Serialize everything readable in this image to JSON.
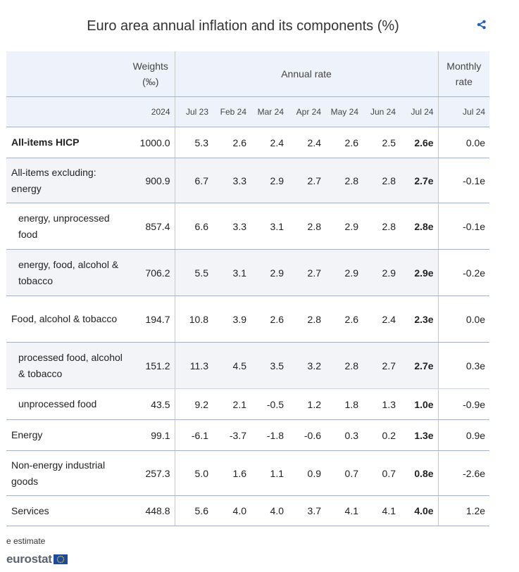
{
  "title": "Euro area annual inflation and its components (%)",
  "header": {
    "weights": "Weights (‰)",
    "annual_rate": "Annual rate",
    "monthly_rate": "Monthly rate",
    "columns": [
      "2024",
      "Jul 23",
      "Feb 24",
      "Mar 24",
      "Apr 24",
      "May 24",
      "Jun 24",
      "Jul 24",
      "Jul 24"
    ]
  },
  "rows": [
    {
      "label": "All-items HICP",
      "values": [
        "1000.0",
        "5.3",
        "2.6",
        "2.4",
        "2.4",
        "2.6",
        "2.5",
        "2.6e",
        "0.0e"
      ]
    },
    {
      "label": "All-items excluding: energy",
      "values": [
        "900.9",
        "6.7",
        "3.3",
        "2.9",
        "2.7",
        "2.8",
        "2.8",
        "2.7e",
        "-0.1e"
      ]
    },
    {
      "label": "energy, unprocessed food",
      "values": [
        "857.4",
        "6.6",
        "3.3",
        "3.1",
        "2.8",
        "2.9",
        "2.8",
        "2.8e",
        "-0.1e"
      ]
    },
    {
      "label": "energy, food, alcohol & tobacco",
      "values": [
        "706.2",
        "5.5",
        "3.1",
        "2.9",
        "2.7",
        "2.9",
        "2.9",
        "2.9e",
        "-0.2e"
      ]
    },
    {
      "label": "Food, alcohol & tobacco",
      "values": [
        "194.7",
        "10.8",
        "3.9",
        "2.6",
        "2.8",
        "2.6",
        "2.4",
        "2.3e",
        "0.0e"
      ]
    },
    {
      "label": "processed food, alcohol & tobacco",
      "values": [
        "151.2",
        "11.3",
        "4.5",
        "3.5",
        "3.2",
        "2.8",
        "2.7",
        "2.7e",
        "0.3e"
      ]
    },
    {
      "label": "unprocessed food",
      "values": [
        "43.5",
        "9.2",
        "2.1",
        "-0.5",
        "1.2",
        "1.8",
        "1.3",
        "1.0e",
        "-0.9e"
      ]
    },
    {
      "label": "Energy",
      "values": [
        "99.1",
        "-6.1",
        "-3.7",
        "-1.8",
        "-0.6",
        "0.3",
        "0.2",
        "1.3e",
        "0.9e"
      ]
    },
    {
      "label": "Non-energy industrial goods",
      "values": [
        "257.3",
        "5.0",
        "1.6",
        "1.1",
        "0.9",
        "0.7",
        "0.7",
        "0.8e",
        "-2.6e"
      ]
    },
    {
      "label": "Services",
      "values": [
        "448.8",
        "5.6",
        "4.0",
        "4.0",
        "3.7",
        "4.1",
        "4.1",
        "4.0e",
        "1.2e"
      ]
    }
  ],
  "footnote": "e estimate",
  "logo_text": "eurostat",
  "icons": {
    "share": "share-icon",
    "flag": "eu-flag-icon"
  },
  "colors": {
    "header_bg": "#eef3fb",
    "row_line": "#9db3d6",
    "share_blue": "#1f5fbf",
    "flag_blue": "#1b4aa3",
    "flag_star": "#ffcc00"
  },
  "chart_data": {
    "type": "table",
    "title": "Euro area annual inflation and its components (%)",
    "column_groups": [
      "Weights (‰)",
      "Annual rate",
      "Monthly rate"
    ],
    "columns": [
      "2024",
      "Jul 23",
      "Feb 24",
      "Mar 24",
      "Apr 24",
      "May 24",
      "Jun 24",
      "Jul 24",
      "Jul 24"
    ],
    "row_labels": [
      "All-items HICP",
      "All-items excluding: energy",
      "energy, unprocessed food",
      "energy, food, alcohol & tobacco",
      "Food, alcohol & tobacco",
      "processed food, alcohol & tobacco",
      "unprocessed food",
      "Energy",
      "Non-energy industrial goods",
      "Services"
    ],
    "weights_2024": [
      1000.0,
      900.9,
      857.4,
      706.2,
      194.7,
      151.2,
      43.5,
      99.1,
      257.3,
      448.8
    ],
    "annual_rate": {
      "months": [
        "Jul 23",
        "Feb 24",
        "Mar 24",
        "Apr 24",
        "May 24",
        "Jun 24",
        "Jul 24"
      ],
      "values": [
        [
          5.3,
          2.6,
          2.4,
          2.4,
          2.6,
          2.5,
          2.6
        ],
        [
          6.7,
          3.3,
          2.9,
          2.7,
          2.8,
          2.8,
          2.7
        ],
        [
          6.6,
          3.3,
          3.1,
          2.8,
          2.9,
          2.8,
          2.8
        ],
        [
          5.5,
          3.1,
          2.9,
          2.7,
          2.9,
          2.9,
          2.9
        ],
        [
          10.8,
          3.9,
          2.6,
          2.8,
          2.6,
          2.4,
          2.3
        ],
        [
          11.3,
          4.5,
          3.5,
          3.2,
          2.8,
          2.7,
          2.7
        ],
        [
          9.2,
          2.1,
          -0.5,
          1.2,
          1.8,
          1.3,
          1.0
        ],
        [
          -6.1,
          -3.7,
          -1.8,
          -0.6,
          0.3,
          0.2,
          1.3
        ],
        [
          5.0,
          1.6,
          1.1,
          0.9,
          0.7,
          0.7,
          0.8
        ],
        [
          5.6,
          4.0,
          4.0,
          3.7,
          4.1,
          4.1,
          4.0
        ]
      ]
    },
    "monthly_rate_jul24": [
      0.0,
      -0.1,
      -0.1,
      -0.2,
      0.0,
      0.3,
      -0.9,
      0.9,
      -2.6,
      1.2
    ],
    "estimate_flag": "e"
  }
}
